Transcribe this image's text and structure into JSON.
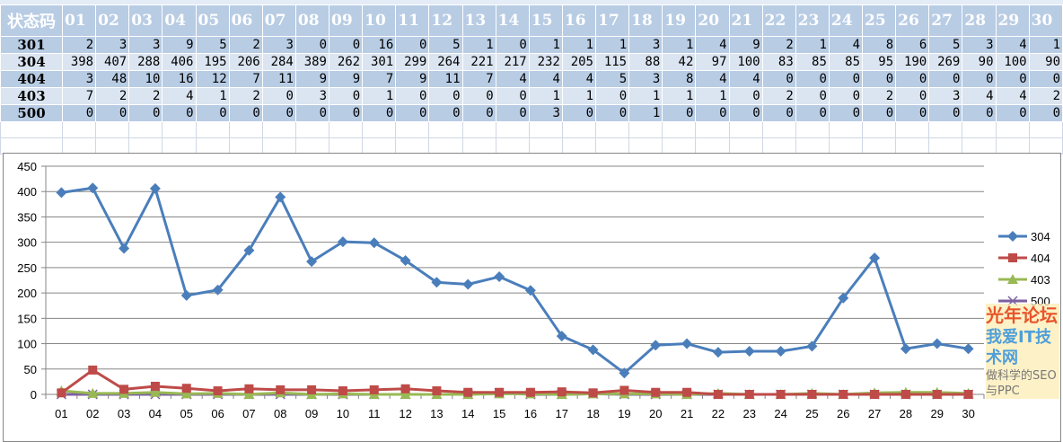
{
  "table": {
    "header_label": "状态码",
    "days": [
      "01",
      "02",
      "03",
      "04",
      "05",
      "06",
      "07",
      "08",
      "09",
      "10",
      "11",
      "12",
      "13",
      "14",
      "15",
      "16",
      "17",
      "18",
      "19",
      "20",
      "21",
      "22",
      "23",
      "24",
      "25",
      "26",
      "27",
      "28",
      "29",
      "30"
    ],
    "rows": [
      {
        "code": "301",
        "values": [
          2,
          3,
          3,
          9,
          5,
          2,
          3,
          0,
          0,
          16,
          0,
          5,
          1,
          0,
          1,
          1,
          1,
          3,
          1,
          4,
          9,
          2,
          1,
          4,
          8,
          6,
          5,
          3,
          4,
          1
        ]
      },
      {
        "code": "304",
        "values": [
          398,
          407,
          288,
          406,
          195,
          206,
          284,
          389,
          262,
          301,
          299,
          264,
          221,
          217,
          232,
          205,
          115,
          88,
          42,
          97,
          100,
          83,
          85,
          85,
          95,
          190,
          269,
          90,
          100,
          90
        ]
      },
      {
        "code": "404",
        "values": [
          3,
          48,
          10,
          16,
          12,
          7,
          11,
          9,
          9,
          7,
          9,
          11,
          7,
          4,
          4,
          4,
          5,
          3,
          8,
          4,
          4,
          0,
          0,
          0,
          0,
          0,
          0,
          0,
          0,
          0
        ]
      },
      {
        "code": "403",
        "values": [
          7,
          2,
          2,
          4,
          1,
          2,
          0,
          3,
          0,
          1,
          0,
          0,
          0,
          0,
          1,
          1,
          0,
          1,
          1,
          1,
          0,
          2,
          0,
          0,
          2,
          0,
          3,
          4,
          4,
          2
        ]
      },
      {
        "code": "500",
        "values": [
          0,
          0,
          0,
          0,
          0,
          0,
          0,
          0,
          0,
          0,
          0,
          0,
          0,
          0,
          3,
          0,
          0,
          1,
          0,
          0,
          0,
          0,
          0,
          0,
          0,
          0,
          0,
          0,
          0,
          0
        ]
      }
    ]
  },
  "chart_data": {
    "type": "line",
    "categories": [
      "01",
      "02",
      "03",
      "04",
      "05",
      "06",
      "07",
      "08",
      "09",
      "10",
      "11",
      "12",
      "13",
      "14",
      "15",
      "16",
      "17",
      "18",
      "19",
      "20",
      "21",
      "22",
      "23",
      "24",
      "25",
      "26",
      "27",
      "28",
      "29",
      "30"
    ],
    "ylim": [
      0,
      450
    ],
    "yticks": [
      "0",
      "50",
      "100",
      "150",
      "200",
      "250",
      "300",
      "350",
      "400",
      "450"
    ],
    "grid": true,
    "legend_position": "right",
    "series": [
      {
        "name": "304",
        "color": "#4a7ebb",
        "marker": "diamond",
        "values": [
          398,
          407,
          288,
          406,
          195,
          206,
          284,
          389,
          262,
          301,
          299,
          264,
          221,
          217,
          232,
          205,
          115,
          88,
          42,
          97,
          100,
          83,
          85,
          85,
          95,
          190,
          269,
          90,
          100,
          90
        ]
      },
      {
        "name": "404",
        "color": "#be4b48",
        "marker": "square",
        "values": [
          3,
          48,
          10,
          16,
          12,
          7,
          11,
          9,
          9,
          7,
          9,
          11,
          7,
          4,
          4,
          4,
          5,
          3,
          8,
          4,
          4,
          0,
          0,
          0,
          0,
          0,
          0,
          0,
          0,
          0
        ]
      },
      {
        "name": "403",
        "color": "#98b954",
        "marker": "triangle",
        "values": [
          7,
          2,
          2,
          4,
          1,
          2,
          0,
          3,
          0,
          1,
          0,
          0,
          0,
          0,
          1,
          1,
          0,
          1,
          1,
          1,
          0,
          2,
          0,
          0,
          2,
          0,
          3,
          4,
          4,
          2
        ]
      },
      {
        "name": "500",
        "color": "#7d60a0",
        "marker": "x",
        "values": [
          0,
          0,
          0,
          0,
          0,
          0,
          0,
          0,
          0,
          0,
          0,
          0,
          0,
          0,
          3,
          0,
          0,
          1,
          0,
          0,
          0,
          0,
          0,
          0,
          0,
          0,
          0,
          0,
          0,
          0
        ]
      }
    ]
  },
  "watermark": {
    "logo": "光年论坛",
    "site": "我爱IT技术网",
    "slogan": "做科学的SEO与PPC"
  }
}
